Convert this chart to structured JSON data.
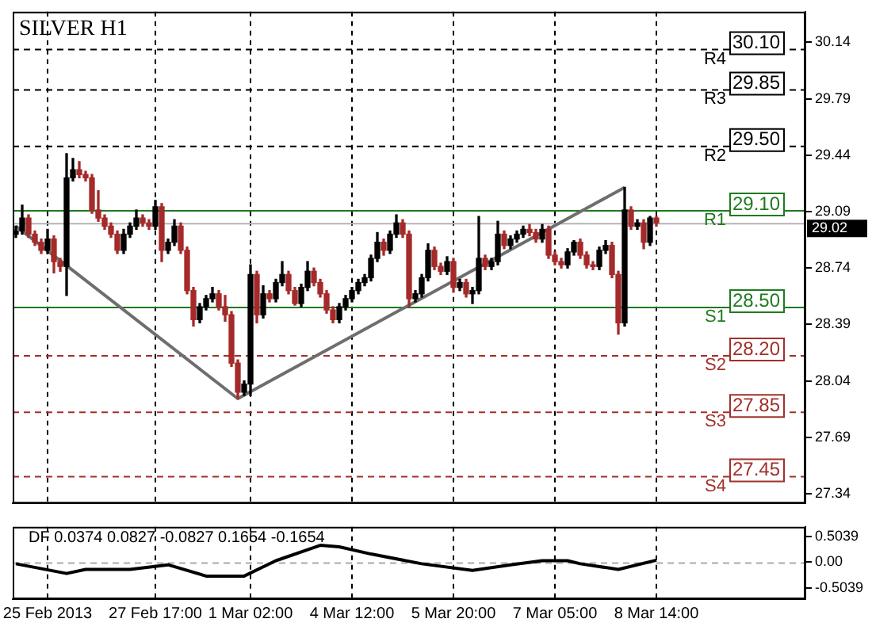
{
  "chart_data": [
    {
      "type": "candlestick",
      "title": "SILVER H1",
      "categories": [
        null,
        null,
        null,
        null,
        null,
        null,
        null,
        null,
        null,
        null,
        null,
        null,
        null,
        null,
        null,
        null,
        null,
        null,
        null,
        null,
        null,
        null,
        null,
        null,
        null,
        null,
        null,
        null,
        null,
        null,
        null,
        null,
        null,
        null,
        null,
        null,
        null,
        null,
        null,
        null,
        null,
        null,
        null,
        null,
        null,
        null,
        null,
        null,
        null,
        null,
        null,
        null,
        null,
        null,
        null,
        null,
        null,
        null,
        null,
        null,
        null,
        null,
        null,
        null,
        null,
        null,
        null,
        null,
        null,
        null,
        null,
        null,
        null,
        null,
        null,
        null,
        null,
        null,
        null,
        null,
        null,
        null,
        null,
        null,
        null,
        null,
        null,
        null,
        null,
        null,
        null,
        null,
        null,
        null,
        null,
        null,
        null,
        null,
        null,
        null,
        null,
        null,
        null,
        null,
        null,
        null,
        null,
        null,
        null,
        null,
        null,
        null,
        null,
        null,
        null,
        null,
        null,
        null,
        null,
        null,
        null,
        null,
        null,
        null,
        null
      ],
      "ohlc": [
        [
          28.95,
          29.0,
          28.93,
          28.97
        ],
        [
          28.97,
          29.13,
          28.95,
          29.05
        ],
        [
          29.05,
          29.07,
          28.93,
          28.95
        ],
        [
          28.95,
          28.97,
          28.88,
          28.9
        ],
        [
          28.9,
          28.92,
          28.83,
          28.85
        ],
        [
          28.85,
          28.98,
          28.83,
          28.92
        ],
        [
          28.92,
          28.94,
          28.71,
          28.78
        ],
        [
          28.78,
          28.8,
          28.72,
          28.75
        ],
        [
          28.75,
          29.45,
          28.57,
          29.3
        ],
        [
          29.3,
          29.42,
          29.28,
          29.35
        ],
        [
          29.35,
          29.4,
          29.3,
          29.32
        ],
        [
          29.32,
          29.34,
          29.28,
          29.3
        ],
        [
          29.3,
          29.32,
          29.08,
          29.1
        ],
        [
          29.1,
          29.22,
          29.03,
          29.05
        ],
        [
          29.05,
          29.07,
          28.98,
          29.0
        ],
        [
          29.0,
          29.02,
          28.93,
          28.95
        ],
        [
          28.95,
          28.97,
          28.83,
          28.85
        ],
        [
          28.85,
          28.98,
          28.83,
          28.95
        ],
        [
          28.95,
          29.02,
          28.93,
          29.0
        ],
        [
          29.0,
          29.1,
          28.98,
          29.05
        ],
        [
          29.05,
          29.07,
          29.0,
          29.02
        ],
        [
          29.02,
          29.04,
          28.98,
          29.0
        ],
        [
          29.0,
          29.16,
          28.98,
          29.12
        ],
        [
          29.12,
          29.14,
          28.78,
          28.85
        ],
        [
          28.85,
          28.92,
          28.83,
          28.9
        ],
        [
          28.9,
          29.04,
          28.88,
          29.0
        ],
        [
          29.0,
          29.02,
          28.83,
          28.85
        ],
        [
          28.85,
          28.87,
          28.58,
          28.6
        ],
        [
          28.6,
          28.62,
          28.38,
          28.42
        ],
        [
          28.42,
          28.52,
          28.4,
          28.5
        ],
        [
          28.5,
          28.57,
          28.48,
          28.55
        ],
        [
          28.55,
          28.62,
          28.53,
          28.58
        ],
        [
          28.58,
          28.6,
          28.48,
          28.5
        ],
        [
          28.5,
          28.57,
          28.41,
          28.45
        ],
        [
          28.45,
          28.47,
          28.13,
          28.15
        ],
        [
          28.15,
          28.17,
          27.93,
          27.97
        ],
        [
          27.97,
          28.04,
          27.95,
          28.02
        ],
        [
          28.02,
          28.76,
          27.95,
          28.7
        ],
        [
          28.7,
          28.72,
          28.4,
          28.45
        ],
        [
          28.45,
          28.63,
          28.43,
          28.58
        ],
        [
          28.58,
          28.6,
          28.53,
          28.55
        ],
        [
          28.55,
          28.67,
          28.53,
          28.65
        ],
        [
          28.65,
          28.78,
          28.63,
          28.7
        ],
        [
          28.7,
          28.72,
          28.58,
          28.6
        ],
        [
          28.6,
          28.62,
          28.51,
          28.52
        ],
        [
          28.52,
          28.64,
          28.5,
          28.62
        ],
        [
          28.62,
          28.78,
          28.6,
          28.72
        ],
        [
          28.72,
          28.74,
          28.63,
          28.65
        ],
        [
          28.65,
          28.67,
          28.56,
          28.58
        ],
        [
          28.58,
          28.6,
          28.46,
          28.48
        ],
        [
          28.48,
          28.5,
          28.4,
          28.42
        ],
        [
          28.42,
          28.52,
          28.4,
          28.5
        ],
        [
          28.5,
          28.57,
          28.48,
          28.55
        ],
        [
          28.55,
          28.62,
          28.53,
          28.6
        ],
        [
          28.6,
          28.67,
          28.58,
          28.65
        ],
        [
          28.65,
          28.7,
          28.63,
          28.68
        ],
        [
          28.68,
          28.82,
          28.66,
          28.8
        ],
        [
          28.8,
          28.96,
          28.78,
          28.9
        ],
        [
          28.9,
          28.92,
          28.82,
          28.85
        ],
        [
          28.85,
          28.97,
          28.83,
          28.95
        ],
        [
          28.95,
          29.07,
          28.93,
          29.02
        ],
        [
          29.02,
          29.04,
          28.93,
          28.95
        ],
        [
          28.95,
          28.97,
          28.5,
          28.55
        ],
        [
          28.55,
          28.6,
          28.53,
          28.58
        ],
        [
          28.58,
          28.7,
          28.56,
          28.68
        ],
        [
          28.68,
          28.89,
          28.66,
          28.85
        ],
        [
          28.85,
          28.87,
          28.73,
          28.75
        ],
        [
          28.75,
          28.77,
          28.7,
          28.72
        ],
        [
          28.72,
          28.81,
          28.7,
          28.78
        ],
        [
          28.78,
          28.8,
          28.59,
          28.62
        ],
        [
          28.62,
          28.67,
          28.6,
          28.65
        ],
        [
          28.65,
          28.67,
          28.56,
          28.58
        ],
        [
          28.58,
          28.62,
          28.52,
          28.6
        ],
        [
          28.6,
          29.06,
          28.58,
          28.8
        ],
        [
          28.8,
          28.82,
          28.73,
          28.75
        ],
        [
          28.75,
          28.8,
          28.73,
          28.78
        ],
        [
          28.78,
          29.03,
          28.76,
          28.95
        ],
        [
          28.95,
          28.97,
          28.86,
          28.88
        ],
        [
          28.88,
          28.94,
          28.86,
          28.92
        ],
        [
          28.92,
          28.97,
          28.9,
          28.95
        ],
        [
          28.95,
          29.0,
          28.93,
          28.98
        ],
        [
          28.98,
          29.01,
          28.94,
          28.96
        ],
        [
          28.96,
          28.98,
          28.9,
          28.92
        ],
        [
          28.92,
          29.01,
          28.9,
          28.98
        ],
        [
          28.98,
          29.0,
          28.8,
          28.82
        ],
        [
          28.82,
          28.84,
          28.76,
          28.78
        ],
        [
          28.78,
          28.8,
          28.74,
          28.76
        ],
        [
          28.76,
          28.86,
          28.74,
          28.84
        ],
        [
          28.84,
          28.91,
          28.82,
          28.9
        ],
        [
          28.9,
          28.92,
          28.8,
          28.82
        ],
        [
          28.82,
          28.84,
          28.74,
          28.76
        ],
        [
          28.76,
          28.78,
          28.73,
          28.75
        ],
        [
          28.75,
          28.87,
          28.73,
          28.85
        ],
        [
          28.85,
          28.91,
          28.83,
          28.88
        ],
        [
          28.88,
          28.9,
          28.68,
          28.7
        ],
        [
          28.7,
          28.72,
          28.33,
          28.4
        ],
        [
          28.4,
          29.24,
          28.38,
          29.1
        ],
        [
          29.1,
          29.12,
          28.98,
          29.0
        ],
        [
          29.0,
          29.04,
          28.98,
          29.02
        ],
        [
          29.02,
          29.04,
          28.86,
          28.9
        ],
        [
          28.9,
          29.06,
          28.88,
          29.05
        ],
        [
          29.05,
          29.06,
          29.0,
          29.02
        ],
        null,
        null,
        null,
        null,
        null,
        null,
        null,
        null,
        null,
        null,
        null,
        null,
        null,
        null,
        null,
        null,
        null,
        null,
        null,
        null,
        null,
        null,
        null
      ],
      "colors": [
        "#000000",
        "#000000",
        "#a52a2a",
        "#a52a2a",
        "#a52a2a",
        "#000000",
        "#a52a2a",
        "#a52a2a",
        "#000000",
        "#000000",
        "#a52a2a",
        "#a52a2a",
        "#a52a2a",
        "#a52a2a",
        "#a52a2a",
        "#a52a2a",
        "#a52a2a",
        "#000000",
        "#000000",
        "#000000",
        "#a52a2a",
        "#a52a2a",
        "#000000",
        "#a52a2a",
        "#000000",
        "#000000",
        "#a52a2a",
        "#a52a2a",
        "#a52a2a",
        "#000000",
        "#000000",
        "#000000",
        "#a52a2a",
        "#a52a2a",
        "#a52a2a",
        "#a52a2a",
        "#000000",
        "#000000",
        "#a52a2a",
        "#000000",
        "#a52a2a",
        "#000000",
        "#000000",
        "#a52a2a",
        "#a52a2a",
        "#000000",
        "#000000",
        "#a52a2a",
        "#a52a2a",
        "#a52a2a",
        "#a52a2a",
        "#000000",
        "#000000",
        "#000000",
        "#000000",
        "#000000",
        "#000000",
        "#000000",
        "#a52a2a",
        "#000000",
        "#000000",
        "#a52a2a",
        "#a52a2a",
        "#000000",
        "#000000",
        "#000000",
        "#a52a2a",
        "#a52a2a",
        "#000000",
        "#a52a2a",
        "#000000",
        "#a52a2a",
        "#000000",
        "#000000",
        "#a52a2a",
        "#000000",
        "#000000",
        "#a52a2a",
        "#000000",
        "#000000",
        "#000000",
        "#a52a2a",
        "#a52a2a",
        "#000000",
        "#a52a2a",
        "#a52a2a",
        "#a52a2a",
        "#000000",
        "#000000",
        "#a52a2a",
        "#a52a2a",
        "#a52a2a",
        "#000000",
        "#000000",
        "#a52a2a",
        "#a52a2a",
        "#000000",
        "#a52a2a",
        "#000000",
        "#a52a2a",
        "#000000",
        "#a52a2a",
        null,
        null,
        null,
        null,
        null,
        null,
        null,
        null,
        null,
        null,
        null,
        null,
        null,
        null,
        null,
        null,
        null,
        null,
        null,
        null,
        null,
        null,
        null
      ],
      "series": [
        {
          "type": "line",
          "color": "#6e6e6e",
          "values": [
            29.0,
            null,
            null,
            null,
            null,
            null,
            null,
            null,
            null,
            null,
            null,
            null,
            null,
            null,
            null,
            null,
            null,
            null,
            null,
            null,
            null,
            null,
            null,
            null,
            null,
            null,
            null,
            null,
            null,
            null,
            null,
            null,
            null,
            null,
            null,
            27.93,
            null,
            null,
            null,
            null,
            null,
            null,
            null,
            null,
            null,
            null,
            null,
            null,
            null,
            null,
            null,
            null,
            null,
            null,
            null,
            null,
            null,
            null,
            null,
            null,
            null,
            null,
            null,
            null,
            null,
            null,
            null,
            null,
            null,
            null,
            null,
            null,
            null,
            null,
            null,
            null,
            null,
            null,
            null,
            null,
            null,
            null,
            null,
            null,
            null,
            null,
            null,
            null,
            null,
            null,
            null,
            null,
            null,
            null,
            null,
            null,
            29.24,
            null,
            null,
            null,
            null,
            null,
            null,
            null,
            null,
            null,
            null,
            null,
            null,
            null,
            null,
            null,
            null,
            null,
            null,
            null,
            null,
            null,
            null,
            null,
            null,
            null,
            null,
            null,
            null
          ]
        }
      ],
      "ylim": [
        27.28,
        30.33
      ],
      "yticks": [
        27.34,
        27.69,
        28.04,
        28.39,
        28.74,
        29.09,
        29.44,
        29.79,
        30.14
      ],
      "ref_lines": [
        {
          "axis": "y",
          "value": 30.1,
          "label": "R4 30.10",
          "color": "#000000",
          "line_style": "dashed"
        },
        {
          "axis": "y",
          "value": 29.85,
          "label": "R3 29.85",
          "color": "#000000",
          "line_style": "dashed"
        },
        {
          "axis": "y",
          "value": 29.5,
          "label": "R2 29.50",
          "color": "#000000",
          "line_style": "dashed"
        },
        {
          "axis": "y",
          "value": 29.1,
          "label": "R1 29.10",
          "color": "#1f7a1f",
          "line_style": "solid"
        },
        {
          "axis": "y",
          "value": 29.02,
          "label": "29.02",
          "color": "#b4b4b4",
          "line_style": "solid"
        },
        {
          "axis": "y",
          "value": 28.5,
          "label": "S1 28.50",
          "color": "#1f7a1f",
          "line_style": "solid"
        },
        {
          "axis": "y",
          "value": 28.2,
          "label": "S2 28.20",
          "color": "#a0302a",
          "line_style": "dashed"
        },
        {
          "axis": "y",
          "value": 27.85,
          "label": "S3 27.85",
          "color": "#a0302a",
          "line_style": "dashed"
        },
        {
          "axis": "y",
          "value": 27.45,
          "label": "S4 27.45",
          "color": "#a0302a",
          "line_style": "dashed"
        }
      ],
      "grid": "x",
      "tick_labels": "y"
    },
    {
      "type": "line",
      "title": "DF 0.0374 0.0827 -0.0827 0.1654 -0.1654",
      "categories": [
        null,
        null,
        null,
        null,
        null,
        "25 Feb 2013",
        null,
        null,
        null,
        null,
        null,
        null,
        null,
        null,
        null,
        null,
        null,
        null,
        null,
        null,
        null,
        null,
        "27 Feb 17:00",
        null,
        null,
        null,
        null,
        null,
        null,
        null,
        null,
        null,
        null,
        null,
        null,
        null,
        null,
        "1 Mar 02:00",
        null,
        null,
        null,
        null,
        null,
        null,
        null,
        null,
        null,
        null,
        null,
        null,
        null,
        null,
        null,
        "4 Mar 12:00",
        null,
        null,
        null,
        null,
        null,
        null,
        null,
        null,
        null,
        null,
        null,
        null,
        null,
        null,
        null,
        "5 Mar 20:00",
        null,
        null,
        null,
        null,
        null,
        null,
        null,
        null,
        null,
        null,
        null,
        null,
        null,
        null,
        null,
        "7 Mar 05:00",
        null,
        null,
        null,
        null,
        null,
        null,
        null,
        null,
        null,
        null,
        null,
        null,
        null,
        null,
        null,
        "8 Mar 14:00",
        null,
        null,
        null,
        null,
        null,
        null,
        null,
        null,
        null,
        null,
        null,
        null,
        null,
        null,
        null,
        null,
        null,
        null,
        null,
        null,
        null,
        null,
        null
      ],
      "series": [
        {
          "color": "#000000",
          "values": [
            -0.03,
            null,
            null,
            null,
            null,
            null,
            null,
            null,
            -0.22,
            null,
            null,
            -0.14,
            null,
            null,
            null,
            null,
            null,
            null,
            -0.14,
            null,
            null,
            null,
            null,
            null,
            -0.05,
            null,
            null,
            null,
            null,
            null,
            -0.27,
            null,
            null,
            null,
            null,
            null,
            -0.27,
            null,
            null,
            null,
            null,
            0.03,
            null,
            null,
            null,
            null,
            null,
            null,
            0.33,
            null,
            null,
            0.3,
            null,
            null,
            null,
            null,
            0.16,
            null,
            null,
            null,
            null,
            null,
            null,
            null,
            -0.03,
            null,
            null,
            null,
            null,
            null,
            null,
            null,
            -0.16,
            null,
            null,
            null,
            null,
            null,
            -0.05,
            null,
            null,
            null,
            null,
            0.03,
            null,
            null,
            null,
            0.03,
            null,
            -0.03,
            null,
            null,
            null,
            null,
            null,
            -0.14,
            null,
            null,
            null,
            null,
            null,
            0.04,
            null,
            null,
            null,
            null,
            null,
            null,
            null,
            null,
            null,
            null,
            null,
            null,
            null,
            null,
            null,
            null,
            null,
            null,
            null,
            null,
            null,
            null,
            null
          ]
        }
      ],
      "ylim": [
        -0.72,
        0.69
      ],
      "yticks": [
        -0.5039,
        {
          "value": 0,
          "label": "0.00"
        },
        0.5039
      ],
      "ref_lines": [
        {
          "axis": "y",
          "value": 0,
          "color": "#aaaaaa",
          "line_style": "dashed"
        }
      ],
      "grid": "x"
    }
  ]
}
